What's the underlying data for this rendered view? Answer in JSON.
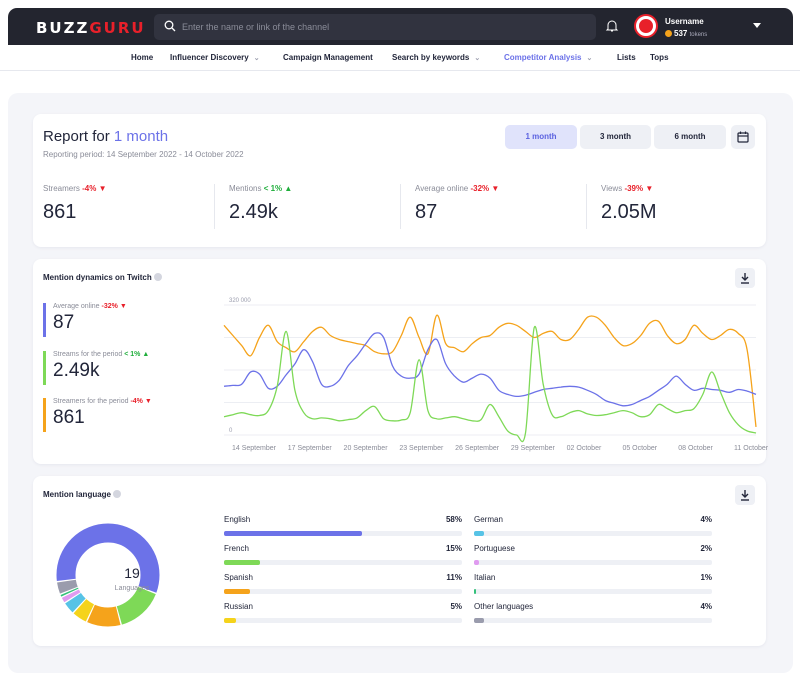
{
  "header": {
    "logo_a": "BUZZ",
    "logo_b": "GURU",
    "search_placeholder": "Enter the name or link of the channel",
    "username": "Username",
    "tokens": "537",
    "tokens_unit": "tokens"
  },
  "nav": {
    "items": [
      "Home",
      "Influencer Discovery",
      "Campaign Management",
      "Search by keywords",
      "Competitor Analysis",
      "Lists",
      "Tops"
    ],
    "active": "Competitor Analysis"
  },
  "report": {
    "title_prefix": "Report for",
    "title_period": "1 month",
    "period_text": "Reporting period: 14 September 2022 - 14 October 2022",
    "buttons": [
      "1 month",
      "3 month",
      "6 month"
    ],
    "active_button": "1 month",
    "stats": [
      {
        "label": "Streamers",
        "change": "-4%",
        "dir": "down",
        "value": "861"
      },
      {
        "label": "Mentions",
        "change": "< 1%",
        "dir": "up",
        "value": "2.49k"
      },
      {
        "label": "Average online",
        "change": "-32%",
        "dir": "down",
        "value": "87"
      },
      {
        "label": "Views",
        "change": "-39%",
        "dir": "down",
        "value": "2.05M"
      }
    ]
  },
  "dynamics": {
    "title": "Mention dynamics on Twitch",
    "metrics": [
      {
        "label": "Average online",
        "change": "-32%",
        "dir": "down",
        "value": "87",
        "color": "#6c72e8"
      },
      {
        "label": "Streams for the period",
        "change": "< 1%",
        "dir": "up",
        "value": "2.49k",
        "color": "#7ed957"
      },
      {
        "label": "Streamers for the period",
        "change": "-4%",
        "dir": "down",
        "value": "861",
        "color": "#f5a31b"
      }
    ]
  },
  "chart_data": {
    "type": "line",
    "y_top_label": "320 000",
    "y_bottom_label": "0",
    "ylim": [
      0,
      320000
    ],
    "x_labels": [
      "14 September",
      "17 September",
      "20 September",
      "23 September",
      "26 September",
      "29 September",
      "02 October",
      "05 October",
      "08 October",
      "11 October"
    ],
    "series": [
      {
        "color": "#f5a31b",
        "values": [
          270000,
          245000,
          220000,
          195000,
          240000,
          270000,
          230000,
          215000,
          205000,
          230000,
          255000,
          265000,
          245000,
          235000,
          230000,
          225000,
          220000,
          205000,
          200000,
          205000,
          245000,
          290000,
          240000,
          200000,
          295000,
          225000,
          215000,
          205000,
          225000,
          240000,
          245000,
          265000,
          275000,
          270000,
          255000,
          240000,
          250000,
          255000,
          235000,
          235000,
          260000,
          290000,
          290000,
          270000,
          240000,
          220000,
          225000,
          245000,
          275000,
          280000,
          245000,
          225000,
          235000,
          270000,
          250000,
          235000,
          245000,
          260000,
          250000,
          210000,
          20000
        ]
      },
      {
        "color": "#6c72e8",
        "values": [
          120000,
          122000,
          125000,
          155000,
          150000,
          115000,
          120000,
          148000,
          175000,
          210000,
          180000,
          125000,
          120000,
          135000,
          170000,
          195000,
          225000,
          250000,
          240000,
          170000,
          145000,
          140000,
          150000,
          210000,
          235000,
          175000,
          145000,
          130000,
          140000,
          150000,
          140000,
          110000,
          100000,
          95000,
          98000,
          105000,
          112000,
          115000,
          118000,
          120000,
          118000,
          110000,
          100000,
          85000,
          78000,
          72000,
          75000,
          85000,
          95000,
          110000,
          125000,
          145000,
          125000,
          110000,
          115000,
          112000,
          110000,
          105000,
          112000,
          108000,
          100000
        ]
      },
      {
        "color": "#7ed957",
        "values": [
          45000,
          50000,
          55000,
          50000,
          48000,
          60000,
          120000,
          255000,
          110000,
          55000,
          40000,
          42000,
          40000,
          35000,
          38000,
          42000,
          60000,
          70000,
          40000,
          35000,
          37000,
          55000,
          185000,
          60000,
          40000,
          42000,
          45000,
          40000,
          35000,
          38000,
          75000,
          45000,
          10000,
          0,
          5000,
          265000,
          125000,
          50000,
          45000,
          55000,
          60000,
          52000,
          48000,
          50000,
          55000,
          60000,
          55000,
          45000,
          50000,
          75000,
          65000,
          55000,
          60000,
          65000,
          100000,
          155000,
          105000,
          55000,
          25000,
          10000,
          5000
        ]
      }
    ]
  },
  "language": {
    "title": "Mention language",
    "count": "19",
    "count_label": "Languages",
    "items": [
      {
        "name": "English",
        "pct": "58%",
        "value": 58,
        "color": "#6c72e8"
      },
      {
        "name": "French",
        "pct": "15%",
        "value": 15,
        "color": "#7ed957"
      },
      {
        "name": "Spanish",
        "pct": "11%",
        "value": 11,
        "color": "#f5a31b"
      },
      {
        "name": "Russian",
        "pct": "5%",
        "value": 5,
        "color": "#f5d31b"
      },
      {
        "name": "German",
        "pct": "4%",
        "value": 4,
        "color": "#57c3e6"
      },
      {
        "name": "Portuguese",
        "pct": "2%",
        "value": 2,
        "color": "#e09bf0"
      },
      {
        "name": "Italian",
        "pct": "1%",
        "value": 1,
        "color": "#34c17a"
      },
      {
        "name": "Other languages",
        "pct": "4%",
        "value": 4,
        "color": "#9a9cad"
      }
    ]
  }
}
